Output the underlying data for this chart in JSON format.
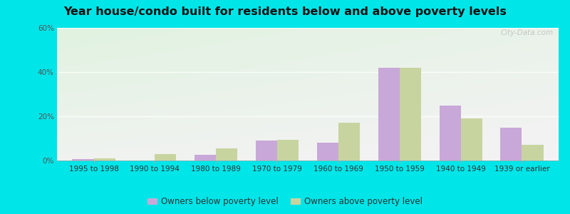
{
  "title": "Year house/condo built for residents below and above poverty levels",
  "categories": [
    "1995 to 1998",
    "1990 to 1994",
    "1980 to 1989",
    "1970 to 1979",
    "1960 to 1969",
    "1950 to 1959",
    "1940 to 1949",
    "1939 or earlier"
  ],
  "below_poverty": [
    0.5,
    0.0,
    2.5,
    9.0,
    8.0,
    42.0,
    25.0,
    15.0
  ],
  "above_poverty": [
    1.0,
    3.0,
    5.5,
    9.5,
    17.0,
    42.0,
    19.0,
    7.0
  ],
  "below_color": "#c8a8d8",
  "above_color": "#c8d4a0",
  "ylim": [
    0,
    60
  ],
  "yticks": [
    0,
    20,
    40,
    60
  ],
  "ytick_labels": [
    "0%",
    "20%",
    "40%",
    "60%"
  ],
  "bar_width": 0.35,
  "outer_background": "#00e5e8",
  "legend_below": "Owners below poverty level",
  "legend_above": "Owners above poverty level",
  "watermark": "City-Data.com",
  "title_fontsize": 11.5,
  "tick_fontsize": 7.5,
  "legend_fontsize": 8.5
}
